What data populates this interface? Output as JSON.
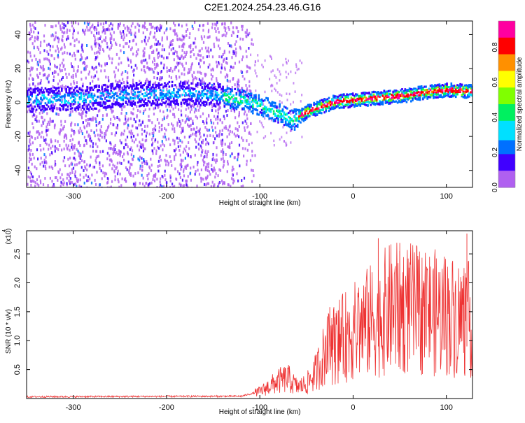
{
  "title": "C2E1.2024.254.23.46.G16",
  "colors": {
    "snr_line": "#ee3333",
    "axis": "#000000",
    "background": "#ffffff"
  },
  "chart_data": [
    {
      "type": "heatmap",
      "xlabel": "Height of straight line (km)",
      "ylabel": "Frequency (Hz)",
      "xlim": [
        -350,
        128
      ],
      "ylim": [
        -50,
        48
      ],
      "xticks": [
        "-300",
        "-200",
        "-100",
        "0",
        "100"
      ],
      "yticks": [
        "-40",
        "-20",
        "0",
        "20",
        "40"
      ],
      "colorbar": {
        "label": "Normalized spectral amplitude",
        "range": [
          0,
          0.95
        ],
        "ticks": [
          "0.0",
          "0.2",
          "0.4",
          "0.6",
          "0.8"
        ],
        "colormap": "rainbow"
      },
      "ridge": {
        "x": [
          -350,
          -300,
          -250,
          -200,
          -150,
          -120,
          -100,
          -80,
          -65,
          -60,
          -50,
          -40,
          -30,
          -20,
          0,
          20,
          40,
          60,
          80,
          100,
          128
        ],
        "y": [
          2,
          3,
          5,
          6,
          5,
          2,
          -1,
          -6,
          -10,
          -8,
          -5,
          -3,
          -1,
          1,
          2,
          3,
          4,
          5,
          7,
          8,
          7
        ]
      },
      "noise_end_x": -115
    },
    {
      "type": "line",
      "xlabel": "Height of straight line (km)",
      "ylabel": "SNR (10 * v/v)",
      "multiplier_label": "(x10",
      "multiplier_exp": "4",
      "xlim": [
        -350,
        128
      ],
      "ylim": [
        0,
        2.9
      ],
      "xticks": [
        "-300",
        "-200",
        "-100",
        "0",
        "100"
      ],
      "yticks": [
        "0.5",
        "1.0",
        "1.5",
        "2.0",
        "2.5"
      ],
      "envelope": {
        "x": [
          -350,
          -120,
          -100,
          -80,
          -70,
          -60,
          -50,
          -40,
          -30,
          -20,
          -10,
          0,
          20,
          40,
          60,
          80,
          100,
          128
        ],
        "y": [
          0.03,
          0.04,
          0.12,
          0.3,
          0.35,
          0.2,
          0.25,
          0.45,
          0.8,
          0.95,
          1.05,
          1.15,
          1.35,
          1.55,
          1.55,
          1.5,
          1.45,
          1.35
        ]
      },
      "spikes": [
        {
          "x": 27,
          "y": 2.77
        },
        {
          "x": 122,
          "y": 2.85
        },
        {
          "x": -25,
          "y": 1.58
        },
        {
          "x": 50,
          "y": 2.55
        },
        {
          "x": 70,
          "y": 2.4
        }
      ]
    }
  ]
}
